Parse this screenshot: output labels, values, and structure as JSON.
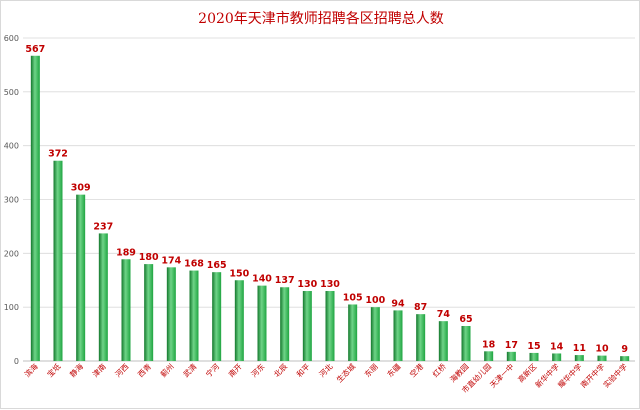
{
  "chart_data": {
    "type": "bar",
    "title": "2020年天津市教师招聘各区招聘总人数",
    "xlabel": "",
    "ylabel": "",
    "ylim": [
      0,
      600
    ],
    "yticks": [
      0,
      100,
      200,
      300,
      400,
      500,
      600
    ],
    "grid": true,
    "categories": [
      "滨海",
      "宝坻",
      "静海",
      "津南",
      "河西",
      "西青",
      "蓟州",
      "武清",
      "宁河",
      "南开",
      "河东",
      "北辰",
      "和平",
      "河北",
      "生态城",
      "东丽",
      "东疆",
      "空港",
      "红桥",
      "海教园",
      "市直幼儿园",
      "天津一中",
      "高新区",
      "新华中学",
      "耀华中学",
      "南开中学",
      "实验中学"
    ],
    "values": [
      567,
      372,
      309,
      237,
      189,
      180,
      174,
      168,
      165,
      150,
      140,
      137,
      130,
      130,
      105,
      100,
      94,
      87,
      74,
      65,
      18,
      17,
      15,
      14,
      11,
      10,
      9
    ],
    "colors": {
      "bar": "#1fa541",
      "bar_light": "#6fd488",
      "bar_dark": "#13782c",
      "value_label": "#c00000",
      "category_label": "#c00000",
      "title": "#c00000",
      "grid": "#d9d9d9"
    }
  }
}
